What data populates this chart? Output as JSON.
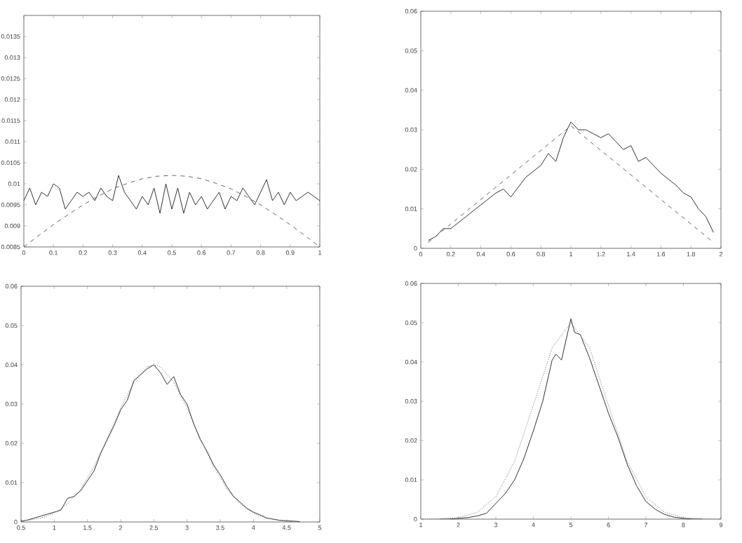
{
  "chart_data": [
    {
      "type": "line",
      "xlim": [
        0,
        1
      ],
      "ylim": [
        0.0085,
        0.014
      ],
      "xticks": [
        0,
        0.1,
        0.2,
        0.3,
        0.4,
        0.5,
        0.6,
        0.7,
        0.8,
        0.9,
        1
      ],
      "yticks": [
        0.0085,
        0.009,
        0.0095,
        0.01,
        0.0105,
        0.011,
        0.0115,
        0.012,
        0.0125,
        0.013,
        0.0135
      ],
      "series": [
        {
          "color": "#333333",
          "line_style": "solid",
          "x": [
            0,
            0.02,
            0.04,
            0.06,
            0.08,
            0.1,
            0.12,
            0.14,
            0.16,
            0.18,
            0.2,
            0.22,
            0.24,
            0.26,
            0.28,
            0.3,
            0.32,
            0.34,
            0.36,
            0.38,
            0.4,
            0.42,
            0.44,
            0.46,
            0.48,
            0.5,
            0.52,
            0.54,
            0.56,
            0.58,
            0.6,
            0.62,
            0.64,
            0.66,
            0.68,
            0.7,
            0.72,
            0.74,
            0.76,
            0.78,
            0.8,
            0.82,
            0.84,
            0.86,
            0.88,
            0.9,
            0.92,
            0.94,
            0.96,
            0.98,
            1
          ],
          "values": [
            0.0096,
            0.0099,
            0.0095,
            0.0098,
            0.0097,
            0.01,
            0.0099,
            0.0094,
            0.0096,
            0.0098,
            0.0097,
            0.0098,
            0.0096,
            0.0099,
            0.0097,
            0.0096,
            0.0102,
            0.0098,
            0.0096,
            0.0094,
            0.0097,
            0.0095,
            0.0099,
            0.0093,
            0.01,
            0.0094,
            0.0099,
            0.0093,
            0.0098,
            0.0095,
            0.0097,
            0.0094,
            0.0096,
            0.0098,
            0.0094,
            0.0097,
            0.0096,
            0.0099,
            0.0097,
            0.0095,
            0.0098,
            0.0101,
            0.0096,
            0.0098,
            0.0095,
            0.0098,
            0.0096,
            0.0097,
            0.0098,
            0.0097,
            0.0096
          ]
        },
        {
          "color": "#666666",
          "line_style": "dashed",
          "x": [
            0,
            0.05,
            0.1,
            0.15,
            0.2,
            0.25,
            0.3,
            0.35,
            0.4,
            0.45,
            0.5,
            0.55,
            0.6,
            0.65,
            0.7,
            0.75,
            0.8,
            0.85,
            0.9,
            0.95,
            1
          ],
          "values": [
            0.0085,
            0.00877,
            0.00903,
            0.00927,
            0.0095,
            0.0097,
            0.00988,
            0.01001,
            0.01012,
            0.01018,
            0.0102,
            0.01018,
            0.01012,
            0.01001,
            0.00988,
            0.0097,
            0.0095,
            0.00927,
            0.00903,
            0.00877,
            0.0085
          ]
        }
      ]
    },
    {
      "type": "line",
      "xlim": [
        0,
        2
      ],
      "ylim": [
        0,
        0.06
      ],
      "xticks": [
        0,
        0.2,
        0.4,
        0.6,
        0.8,
        1,
        1.2,
        1.4,
        1.6,
        1.8,
        2
      ],
      "yticks": [
        0,
        0.01,
        0.02,
        0.03,
        0.04,
        0.05,
        0.06
      ],
      "series": [
        {
          "color": "#333333",
          "line_style": "solid",
          "x": [
            0.05,
            0.1,
            0.15,
            0.2,
            0.3,
            0.4,
            0.5,
            0.55,
            0.6,
            0.7,
            0.8,
            0.85,
            0.9,
            0.95,
            1,
            1.05,
            1.1,
            1.2,
            1.25,
            1.3,
            1.35,
            1.4,
            1.45,
            1.5,
            1.55,
            1.6,
            1.7,
            1.75,
            1.8,
            1.85,
            1.9,
            1.95
          ],
          "values": [
            0.002,
            0.003,
            0.005,
            0.005,
            0.008,
            0.011,
            0.014,
            0.015,
            0.013,
            0.018,
            0.021,
            0.024,
            0.022,
            0.028,
            0.032,
            0.03,
            0.03,
            0.028,
            0.029,
            0.027,
            0.025,
            0.026,
            0.022,
            0.023,
            0.021,
            0.019,
            0.016,
            0.014,
            0.013,
            0.01,
            0.008,
            0.004
          ]
        },
        {
          "color": "#666666",
          "line_style": "dashed",
          "x": [
            0.05,
            1,
            1.95
          ],
          "values": [
            0.0015,
            0.031,
            0.0015
          ]
        }
      ]
    },
    {
      "type": "line",
      "xlim": [
        0.5,
        5
      ],
      "ylim": [
        0,
        0.06
      ],
      "xticks": [
        0.5,
        1,
        1.5,
        2,
        2.5,
        3,
        3.5,
        4,
        4.5,
        5
      ],
      "yticks": [
        0,
        0.01,
        0.02,
        0.03,
        0.04,
        0.05,
        0.06
      ],
      "series": [
        {
          "color": "#333333",
          "line_style": "solid",
          "x": [
            0.5,
            0.6,
            0.7,
            0.8,
            0.9,
            1,
            1.1,
            1.2,
            1.3,
            1.4,
            1.5,
            1.6,
            1.7,
            1.8,
            1.9,
            2,
            2.1,
            2.2,
            2.3,
            2.4,
            2.5,
            2.6,
            2.7,
            2.8,
            2.9,
            3,
            3.1,
            3.2,
            3.3,
            3.4,
            3.5,
            3.6,
            3.7,
            3.8,
            3.9,
            4,
            4.1,
            4.2,
            4.3,
            4.4,
            4.5,
            4.6,
            4.7
          ],
          "values": [
            0.0002,
            0.0005,
            0.001,
            0.0015,
            0.002,
            0.0025,
            0.003,
            0.006,
            0.0065,
            0.008,
            0.0105,
            0.013,
            0.0175,
            0.021,
            0.0245,
            0.0285,
            0.031,
            0.036,
            0.0375,
            0.039,
            0.04,
            0.038,
            0.035,
            0.037,
            0.0325,
            0.03,
            0.025,
            0.021,
            0.018,
            0.0145,
            0.012,
            0.009,
            0.0065,
            0.005,
            0.0035,
            0.0025,
            0.0018,
            0.001,
            0.0007,
            0.0004,
            0.0003,
            0.0002,
            0.0001
          ]
        },
        {
          "color": "#666666",
          "line_style": "dotted",
          "x": [
            0.6,
            0.8,
            1,
            1.2,
            1.4,
            1.6,
            1.8,
            2,
            2.2,
            2.4,
            2.5,
            2.6,
            2.8,
            3,
            3.2,
            3.4,
            3.6,
            3.8,
            4,
            4.2,
            4.4,
            4.6
          ],
          "values": [
            0.0004,
            0.001,
            0.0022,
            0.0046,
            0.0084,
            0.0141,
            0.0213,
            0.029,
            0.0356,
            0.0395,
            0.04,
            0.0395,
            0.0356,
            0.029,
            0.0213,
            0.0141,
            0.0084,
            0.0046,
            0.0022,
            0.001,
            0.0004,
            0.0001
          ]
        }
      ]
    },
    {
      "type": "line",
      "xlim": [
        1,
        9
      ],
      "ylim": [
        0,
        0.06
      ],
      "xticks": [
        1,
        2,
        3,
        4,
        5,
        6,
        7,
        8,
        9
      ],
      "yticks": [
        0,
        0.01,
        0.02,
        0.03,
        0.04,
        0.05,
        0.06
      ],
      "series": [
        {
          "color": "#333333",
          "line_style": "solid",
          "x": [
            1.5,
            1.75,
            2,
            2.25,
            2.5,
            2.75,
            3,
            3.25,
            3.5,
            3.75,
            4,
            4.25,
            4.5,
            4.6,
            4.75,
            5,
            5.1,
            5.25,
            5.5,
            5.75,
            6,
            6.25,
            6.5,
            6.75,
            7,
            7.25,
            7.5,
            7.75,
            8,
            8.25,
            8.5
          ],
          "values": [
            0,
            0,
            0.0002,
            0.0004,
            0.0008,
            0.0015,
            0.004,
            0.0065,
            0.01,
            0.0155,
            0.0225,
            0.03,
            0.0405,
            0.042,
            0.0405,
            0.051,
            0.0475,
            0.047,
            0.041,
            0.034,
            0.027,
            0.021,
            0.014,
            0.0085,
            0.0045,
            0.0025,
            0.0012,
            0.0005,
            0.0002,
            0,
            0
          ]
        },
        {
          "color": "#666666",
          "line_style": "dotted",
          "x": [
            1,
            1.5,
            2,
            2.5,
            3,
            3.5,
            4,
            4.5,
            5,
            5.5,
            6,
            6.5,
            7,
            7.5,
            8,
            8.5,
            9
          ],
          "values": [
            0,
            0.0001,
            0.0004,
            0.0017,
            0.0057,
            0.0147,
            0.029,
            0.0436,
            0.05,
            0.0436,
            0.029,
            0.0147,
            0.0057,
            0.0017,
            0.0004,
            0.0001,
            0
          ]
        }
      ]
    }
  ]
}
